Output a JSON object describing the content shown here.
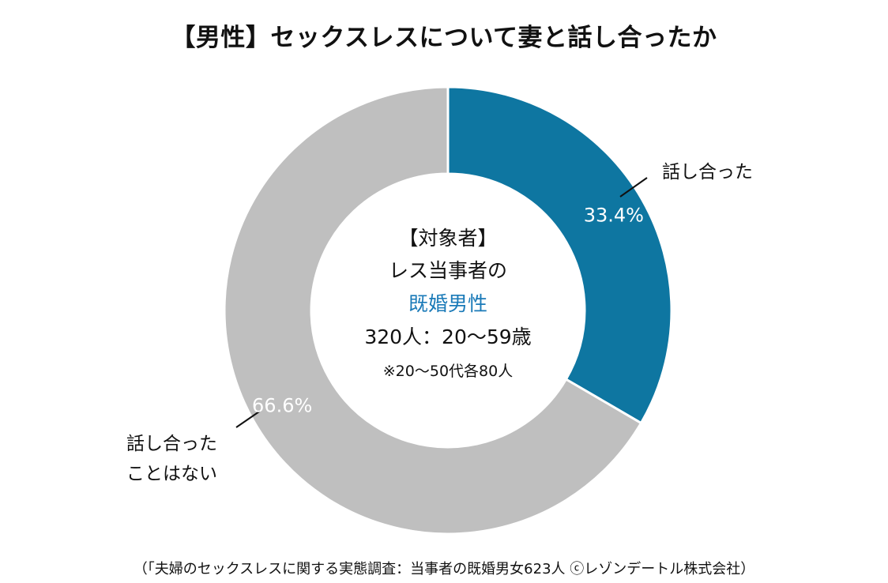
{
  "title": "【男性】セックスレスについて妻と話し合ったか",
  "center": {
    "heading": "【対象者】",
    "line1": "レス当事者の",
    "line2": "既婚男性",
    "line3": "320人：20〜59歳",
    "note": "※20〜50代各80人"
  },
  "source": "（「夫婦のセックスレスに関する実態調査：当事者の既婚男女623人 ⓒレゾンデートル株式会社）",
  "colors": {
    "talked": "#0e76a1",
    "not_talked": "#bfbfbf",
    "accent_text": "#1a7ab8",
    "label_text_on_slice": "#ffffff"
  },
  "chart_data": {
    "type": "pie",
    "donut": true,
    "slices": [
      {
        "label": "話し合った",
        "label_lines": [
          "話し合った"
        ],
        "value": 33.4,
        "value_label": "33.4%",
        "color": "#0e76a1"
      },
      {
        "label": "話し合ったことはない",
        "label_lines": [
          "話し合った",
          "ことはない"
        ],
        "value": 66.6,
        "value_label": "66.6%",
        "color": "#bfbfbf"
      }
    ]
  }
}
